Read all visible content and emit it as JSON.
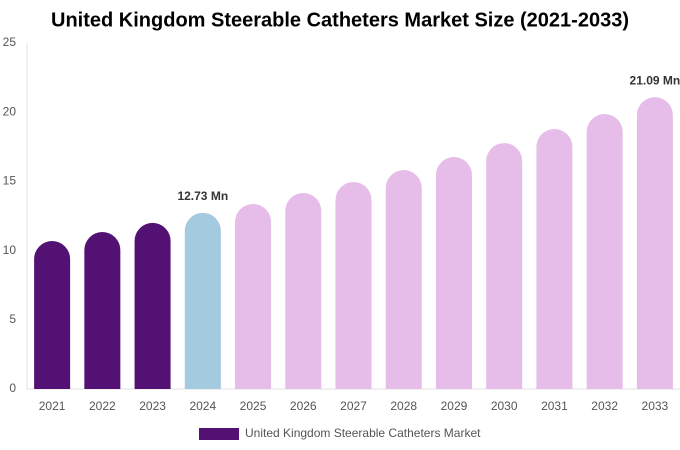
{
  "chart_data": {
    "type": "bar",
    "title": "United Kingdom Steerable Catheters Market Size (2021-2033)",
    "categories": [
      "2021",
      "2022",
      "2023",
      "2024",
      "2025",
      "2026",
      "2027",
      "2028",
      "2029",
      "2030",
      "2031",
      "2032",
      "2033"
    ],
    "series": [
      {
        "name": "United Kingdom Steerable Catheters Market",
        "color": "#531173",
        "values": [
          10.69,
          11.34,
          12.0,
          12.73,
          13.37,
          14.16,
          14.96,
          15.82,
          16.76,
          17.77,
          18.79,
          19.87,
          21.09
        ],
        "value_labels": [
          null,
          null,
          null,
          "12.73 Mn",
          null,
          null,
          null,
          null,
          null,
          null,
          null,
          null,
          "21.09 Mn"
        ],
        "colors": [
          "#531173",
          "#531173",
          "#531173",
          "#a3cadf",
          "#e6bde9",
          "#e6bde9",
          "#e6bde9",
          "#e6bde9",
          "#e6bde9",
          "#e6bde9",
          "#e6bde9",
          "#e6bde9",
          "#e6bde9"
        ]
      }
    ],
    "ylim": [
      0,
      25
    ],
    "yticks": [
      0,
      5,
      10,
      15,
      20,
      25
    ],
    "grid": false,
    "legend": "bottom"
  }
}
